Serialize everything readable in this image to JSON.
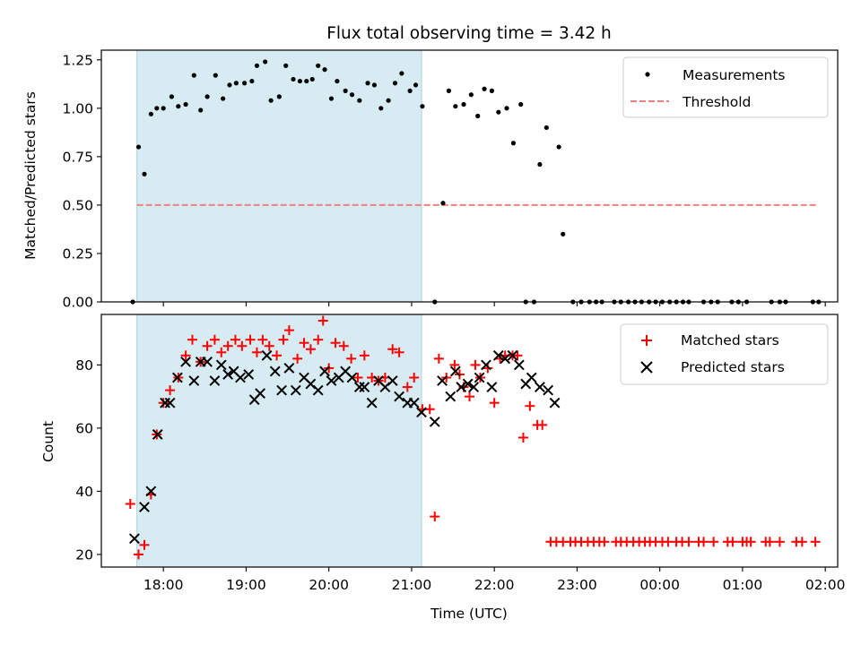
{
  "chart_data": [
    {
      "panel": "top",
      "type": "scatter",
      "title": "Flux total observing time = 3.42 h",
      "xlabel": "",
      "ylabel": "Matched/Predicted stars",
      "ylim": [
        0.0,
        1.3
      ],
      "yticks": [
        0.0,
        0.25,
        0.5,
        0.75,
        1.0,
        1.25
      ],
      "ytick_labels": [
        "0.00",
        "0.25",
        "0.50",
        "0.75",
        "1.00",
        "1.25"
      ],
      "shaded_interval_hours": [
        17.68,
        21.12
      ],
      "shade_color": "#add8e6",
      "legend_position": "top-right",
      "series": [
        {
          "name": "Measurements",
          "style": "dot",
          "color": "#000000",
          "x": [
            17.63,
            17.7,
            17.77,
            17.85,
            17.92,
            18.0,
            18.1,
            18.18,
            18.27,
            18.37,
            18.45,
            18.53,
            18.63,
            18.72,
            18.8,
            18.88,
            18.98,
            19.07,
            19.13,
            19.23,
            19.3,
            19.4,
            19.48,
            19.57,
            19.65,
            19.73,
            19.8,
            19.87,
            19.95,
            20.03,
            20.1,
            20.2,
            20.28,
            20.37,
            20.47,
            20.55,
            20.63,
            20.72,
            20.8,
            20.88,
            20.98,
            21.05,
            21.13,
            21.28,
            21.38,
            21.45,
            21.53,
            21.63,
            21.72,
            21.8,
            21.88,
            21.97,
            22.05,
            22.15,
            22.23,
            22.32,
            22.38,
            22.48,
            22.55,
            22.63,
            22.78,
            22.83,
            22.95,
            23.05,
            23.15,
            23.23,
            23.3,
            23.45,
            23.53,
            23.62,
            23.7,
            23.78,
            23.87,
            23.95,
            24.03,
            24.12,
            24.2,
            24.28,
            24.35,
            24.53,
            24.62,
            24.7,
            24.87,
            24.95,
            25.05,
            25.35,
            25.45,
            25.52,
            25.85,
            25.92
          ],
          "y": [
            0.0,
            0.8,
            0.66,
            0.97,
            1.0,
            1.0,
            1.06,
            1.01,
            1.02,
            1.17,
            0.99,
            1.06,
            1.17,
            1.05,
            1.12,
            1.13,
            1.13,
            1.14,
            1.22,
            1.24,
            1.04,
            1.06,
            1.22,
            1.15,
            1.14,
            1.14,
            1.15,
            1.22,
            1.2,
            1.05,
            1.14,
            1.09,
            1.07,
            1.04,
            1.13,
            1.12,
            1.0,
            1.04,
            1.13,
            1.18,
            1.09,
            1.12,
            1.01,
            0.0,
            0.51,
            1.09,
            1.01,
            1.02,
            1.07,
            0.96,
            1.1,
            1.09,
            0.98,
            1.0,
            0.82,
            1.02,
            0.0,
            0.0,
            0.71,
            0.9,
            0.8,
            0.35,
            0.0,
            0.0,
            0.0,
            0.0,
            0.0,
            0.0,
            0.0,
            0.0,
            0.0,
            0.0,
            0.0,
            0.0,
            0.0,
            0.0,
            0.0,
            0.0,
            0.0,
            0.0,
            0.0,
            0.0,
            0.0,
            0.0,
            0.0,
            0.0,
            0.0,
            0.0,
            0.0,
            0.0
          ]
        },
        {
          "name": "Threshold",
          "style": "dashed-line",
          "color": "#f08080",
          "x": [
            17.68,
            25.92
          ],
          "y": [
            0.5,
            0.5
          ]
        }
      ]
    },
    {
      "panel": "bottom",
      "type": "scatter",
      "title": "",
      "xlabel": "Time (UTC)",
      "ylabel": "Count",
      "xlim_hours": [
        17.25,
        26.15
      ],
      "ylim": [
        16,
        96
      ],
      "yticks": [
        20,
        40,
        60,
        80
      ],
      "ytick_labels": [
        "20",
        "40",
        "60",
        "80"
      ],
      "xtick_hours": [
        18,
        19,
        20,
        21,
        22,
        23,
        24,
        25,
        26
      ],
      "xtick_labels": [
        "18:00",
        "19:00",
        "20:00",
        "21:00",
        "22:00",
        "23:00",
        "00:00",
        "01:00",
        "02:00"
      ],
      "shaded_interval_hours": [
        17.68,
        21.12
      ],
      "shade_color": "#add8e6",
      "legend_position": "top-right",
      "series": [
        {
          "name": "Matched stars",
          "style": "plus",
          "color": "#ff0000",
          "x": [
            17.6,
            17.7,
            17.77,
            17.85,
            17.92,
            18.0,
            18.08,
            18.18,
            18.27,
            18.35,
            18.45,
            18.53,
            18.62,
            18.7,
            18.78,
            18.87,
            18.95,
            19.05,
            19.13,
            19.2,
            19.28,
            19.37,
            19.45,
            19.52,
            19.62,
            19.7,
            19.78,
            19.87,
            19.93,
            20.0,
            20.08,
            20.18,
            20.27,
            20.35,
            20.43,
            20.52,
            20.6,
            20.68,
            20.77,
            20.85,
            20.95,
            21.03,
            21.13,
            21.22,
            21.28,
            21.33,
            21.42,
            21.52,
            21.58,
            21.63,
            21.7,
            21.77,
            21.83,
            21.92,
            22.0,
            22.07,
            22.13,
            22.22,
            22.28,
            22.35,
            22.43,
            22.52,
            22.58,
            22.68,
            22.75,
            22.83,
            22.92,
            22.98,
            23.05,
            23.13,
            23.2,
            23.27,
            23.33,
            23.47,
            23.53,
            23.6,
            23.68,
            23.75,
            23.82,
            23.88,
            23.95,
            24.03,
            24.1,
            24.2,
            24.27,
            24.35,
            24.47,
            24.53,
            24.65,
            24.82,
            24.88,
            25.0,
            25.05,
            25.1,
            25.28,
            25.33,
            25.45,
            25.65,
            25.72,
            25.88
          ],
          "y": [
            36,
            20,
            23,
            39,
            58,
            68,
            72,
            76,
            83,
            88,
            81,
            86,
            88,
            84,
            86,
            88,
            86,
            88,
            84,
            88,
            86,
            83,
            88,
            91,
            82,
            87,
            85,
            88,
            94,
            79,
            87,
            86,
            82,
            76,
            83,
            76,
            75,
            76,
            85,
            84,
            73,
            76,
            66,
            66,
            32,
            82,
            76,
            80,
            77,
            73,
            70,
            80,
            76,
            79,
            68,
            82,
            83,
            83,
            83,
            57,
            67,
            61,
            61,
            24,
            24,
            24,
            24,
            24,
            24,
            24,
            24,
            24,
            24,
            24,
            24,
            24,
            24,
            24,
            24,
            24,
            24,
            24,
            24,
            24,
            24,
            24,
            24,
            24,
            24,
            24,
            24,
            24,
            24,
            24,
            24,
            24,
            24,
            24,
            24,
            24
          ]
        },
        {
          "name": "Predicted stars",
          "style": "x",
          "color": "#000000",
          "x": [
            17.65,
            17.77,
            17.85,
            17.93,
            18.02,
            18.08,
            18.17,
            18.27,
            18.37,
            18.45,
            18.53,
            18.62,
            18.7,
            18.78,
            18.85,
            18.93,
            19.03,
            19.1,
            19.17,
            19.25,
            19.35,
            19.43,
            19.52,
            19.6,
            19.7,
            19.78,
            19.87,
            19.95,
            20.03,
            20.12,
            20.2,
            20.28,
            20.37,
            20.43,
            20.52,
            20.6,
            20.68,
            20.77,
            20.85,
            20.95,
            21.03,
            21.12,
            21.28,
            21.37,
            21.47,
            21.53,
            21.6,
            21.68,
            21.75,
            21.82,
            21.9,
            21.97,
            22.05,
            22.13,
            22.22,
            22.3,
            22.38,
            22.45,
            22.55,
            22.65,
            22.73
          ],
          "y": [
            25,
            35,
            40,
            58,
            68,
            68,
            76,
            81,
            75,
            81,
            81,
            75,
            80,
            77,
            78,
            76,
            77,
            69,
            71,
            83,
            78,
            72,
            79,
            72,
            76,
            74,
            72,
            78,
            75,
            76,
            78,
            76,
            73,
            73,
            68,
            75,
            73,
            75,
            70,
            68,
            68,
            65,
            62,
            75,
            70,
            78,
            73,
            74,
            73,
            76,
            80,
            73,
            83,
            82,
            83,
            80,
            74,
            76,
            73,
            72,
            68
          ]
        }
      ]
    }
  ]
}
